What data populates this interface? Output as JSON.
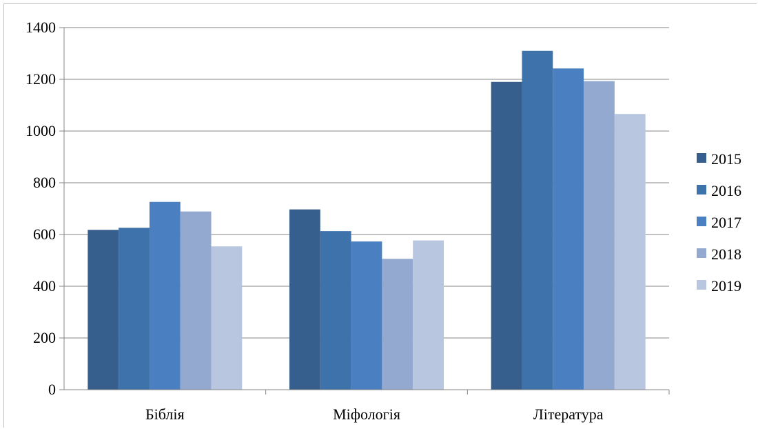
{
  "chart_data": {
    "type": "bar",
    "categories": [
      "Біблія",
      "Міфологія",
      "Література"
    ],
    "series": [
      {
        "name": "2015",
        "values": [
          618,
          697,
          1190
        ],
        "color": "#375f8e"
      },
      {
        "name": "2016",
        "values": [
          626,
          613,
          1310
        ],
        "color": "#3d72aa"
      },
      {
        "name": "2017",
        "values": [
          726,
          573,
          1242
        ],
        "color": "#4a80c1"
      },
      {
        "name": "2018",
        "values": [
          689,
          506,
          1193
        ],
        "color": "#93a9d0"
      },
      {
        "name": "2019",
        "values": [
          554,
          577,
          1066
        ],
        "color": "#b9c6e0"
      }
    ],
    "ylim": [
      0,
      1400
    ],
    "yticks": [
      "0",
      "200",
      "400",
      "600",
      "800",
      "1000",
      "1200",
      "1400"
    ],
    "grid": true,
    "legend_position": "right",
    "title": "",
    "xlabel": "",
    "ylabel": ""
  }
}
